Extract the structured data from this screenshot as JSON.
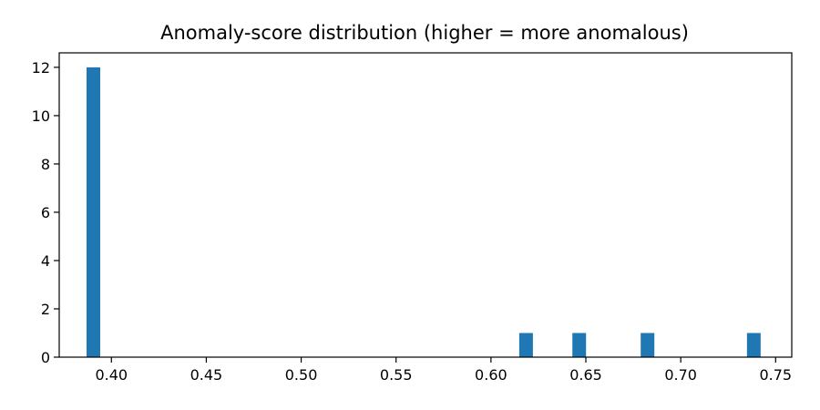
{
  "chart_data": {
    "type": "bar",
    "title": "Anomaly-score distribution (higher = more anomalous)",
    "xlabel": "",
    "ylabel": "",
    "xlim": [
      0.3725,
      0.7585
    ],
    "ylim": [
      0,
      12.6
    ],
    "bin_width": 0.0072,
    "bins": [
      {
        "x": 0.3905,
        "count": 12
      },
      {
        "x": 0.6185,
        "count": 1
      },
      {
        "x": 0.6465,
        "count": 1
      },
      {
        "x": 0.6825,
        "count": 1
      },
      {
        "x": 0.7385,
        "count": 1
      }
    ],
    "xticks": [
      {
        "value": 0.4,
        "label": "0.40"
      },
      {
        "value": 0.45,
        "label": "0.45"
      },
      {
        "value": 0.5,
        "label": "0.50"
      },
      {
        "value": 0.55,
        "label": "0.55"
      },
      {
        "value": 0.6,
        "label": "0.60"
      },
      {
        "value": 0.65,
        "label": "0.65"
      },
      {
        "value": 0.7,
        "label": "0.70"
      },
      {
        "value": 0.75,
        "label": "0.75"
      }
    ],
    "yticks": [
      {
        "value": 0,
        "label": "0"
      },
      {
        "value": 2,
        "label": "2"
      },
      {
        "value": 4,
        "label": "4"
      },
      {
        "value": 6,
        "label": "6"
      },
      {
        "value": 8,
        "label": "8"
      },
      {
        "value": 10,
        "label": "10"
      },
      {
        "value": 12,
        "label": "12"
      }
    ],
    "grid": false,
    "bar_color": "#1f77b4"
  }
}
